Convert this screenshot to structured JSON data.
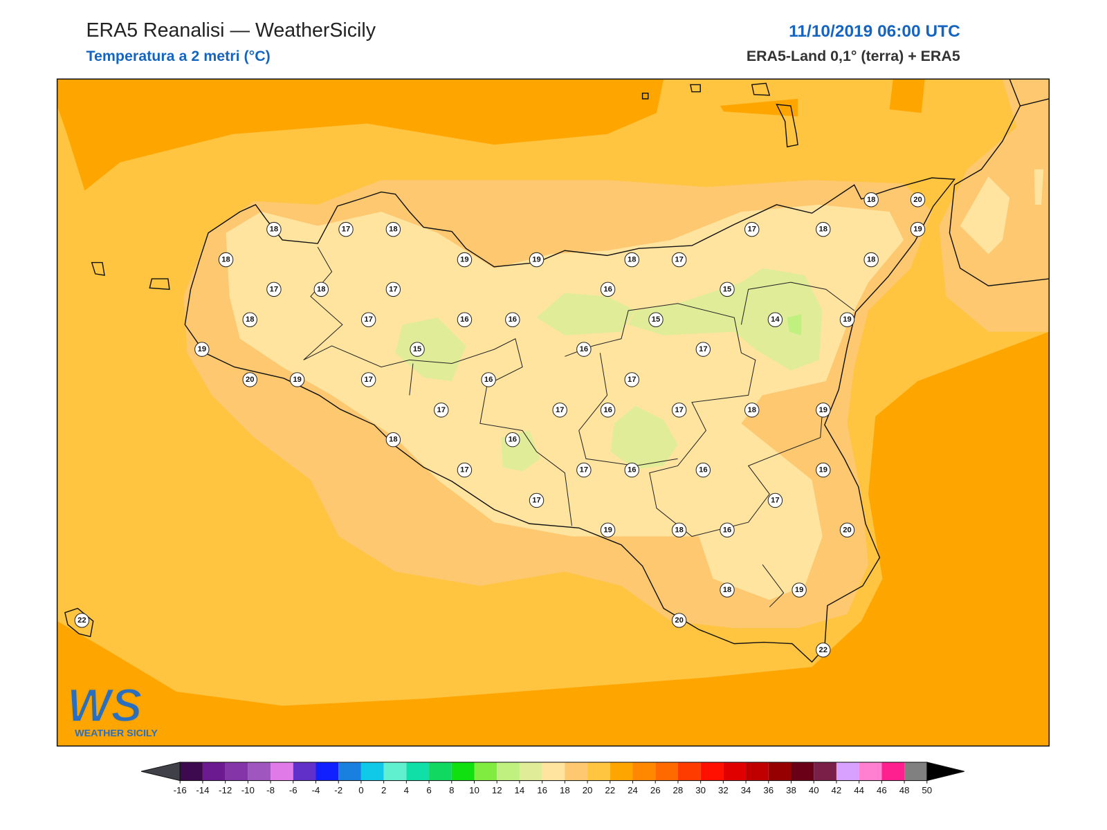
{
  "header": {
    "title": "ERA5 Reanalisi — WeatherSicily",
    "subtitle": "Temperatura a 2 metri (°C)",
    "date": "11/10/2019 06:00 UTC",
    "source": "ERA5-Land 0,1° (terra) + ERA5"
  },
  "logo": {
    "mark": "WS",
    "name": "WEATHER SICILY"
  },
  "stations": [
    18,
    17,
    18,
    18,
    19,
    19,
    18,
    17,
    17,
    18,
    18,
    20,
    19,
    18,
    17,
    18,
    17,
    16,
    15,
    18,
    17,
    16,
    16,
    15,
    14,
    19,
    19,
    15,
    16,
    17,
    20,
    19,
    17,
    16,
    17,
    17,
    17,
    16,
    17,
    18,
    19,
    18,
    16,
    17,
    17,
    16,
    16,
    19,
    17,
    17,
    19,
    18,
    16,
    20,
    18,
    19,
    20,
    22,
    22
  ],
  "colorbar": {
    "ticks": [
      -16,
      -14,
      -12,
      -10,
      -8,
      -6,
      -4,
      -2,
      0,
      2,
      4,
      6,
      8,
      10,
      12,
      14,
      16,
      18,
      20,
      22,
      24,
      26,
      28,
      30,
      32,
      34,
      36,
      38,
      40,
      42,
      44,
      46,
      48,
      50
    ],
    "colors": [
      "#3d0a4f",
      "#6b1a8f",
      "#8435a8",
      "#a056bf",
      "#e07ae8",
      "#6030c8",
      "#1020ff",
      "#1a80e0",
      "#10c8e8",
      "#60f0d0",
      "#10e0a8",
      "#10d860",
      "#10e010",
      "#80ec40",
      "#c0f080",
      "#e0ec98",
      "#ffe4a0",
      "#fdc870",
      "#ffc440",
      "#ffa500",
      "#ff8800",
      "#ff6a00",
      "#ff3c00",
      "#ff1000",
      "#e00000",
      "#c00000",
      "#960000",
      "#6a0018",
      "#7a2048",
      "#d8a0ff",
      "#ff80d0",
      "#ff2090",
      "#808080",
      "#383838"
    ],
    "under": "#404048",
    "over": "#000000"
  }
}
